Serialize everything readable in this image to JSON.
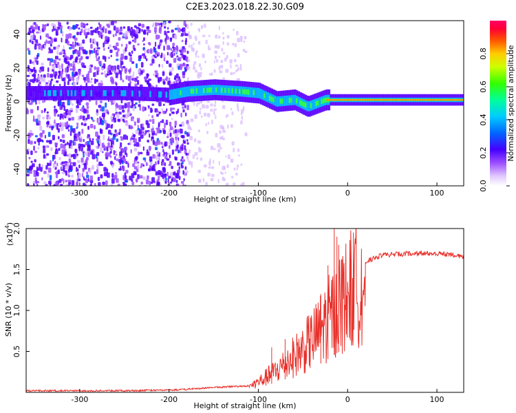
{
  "title": "C2E3.2023.018.22.30.G09",
  "colors": {
    "snr_line": "#e8302a",
    "axis": "#000000",
    "spectrum_low": "#7a00ff",
    "spectrum_band": "#00c8ff"
  },
  "chart_data": [
    {
      "type": "heatmap",
      "xlabel": "Height of straight line (km)",
      "ylabel": "Frequency (Hz)",
      "xlim": [
        -360,
        130
      ],
      "ylim": [
        -50,
        48
      ],
      "xticks": [
        -300,
        -200,
        -100,
        0,
        100
      ],
      "yticks": [
        -40,
        -20,
        0,
        20,
        40
      ],
      "colorbar": {
        "label": "Normalized spectral amplitude",
        "range": [
          0.0,
          1.0
        ],
        "ticks": [
          "0.0",
          "0.2",
          "0.4",
          "0.6",
          "0.8"
        ],
        "colormap": "rainbow"
      },
      "ridge": {
        "description": "carrier frequency track",
        "x": [
          -360,
          -300,
          -250,
          -200,
          -180,
          -150,
          -120,
          -100,
          -80,
          -60,
          -45,
          -35,
          -25,
          0,
          50,
          100,
          130
        ],
        "y": [
          5,
          5,
          5,
          4,
          6,
          7,
          6,
          5,
          0,
          1,
          -3,
          -1,
          1,
          1,
          1,
          1,
          1
        ]
      }
    },
    {
      "type": "line",
      "xlabel": "Height of straight line (km)",
      "ylabel": "SNR (10 * v/v)",
      "y_multiplier": "(x10^4)",
      "xlim": [
        -360,
        130
      ],
      "ylim": [
        0,
        2.0
      ],
      "xticks": [
        -300,
        -200,
        -100,
        0,
        100
      ],
      "yticks": [
        "0.5",
        "1.0",
        "1.5",
        "2.0"
      ],
      "envelope": {
        "x": [
          -360,
          -250,
          -190,
          -150,
          -110,
          -95,
          -80,
          -65,
          -50,
          -35,
          -20,
          -12,
          -5,
          5,
          20,
          40,
          80,
          120,
          130
        ],
        "y": [
          0.02,
          0.02,
          0.03,
          0.06,
          0.08,
          0.18,
          0.3,
          0.45,
          0.6,
          0.8,
          1.05,
          1.2,
          1.3,
          1.45,
          1.6,
          1.68,
          1.7,
          1.68,
          1.65
        ]
      },
      "spikes": [
        {
          "x": -15,
          "y": 2.0
        },
        {
          "x": -12,
          "y": 1.9
        },
        {
          "x": -10,
          "y": 1.8
        },
        {
          "x": -22,
          "y": 1.55
        },
        {
          "x": -30,
          "y": 1.2
        },
        {
          "x": -70,
          "y": 0.65
        },
        {
          "x": -85,
          "y": 0.55
        }
      ]
    }
  ]
}
